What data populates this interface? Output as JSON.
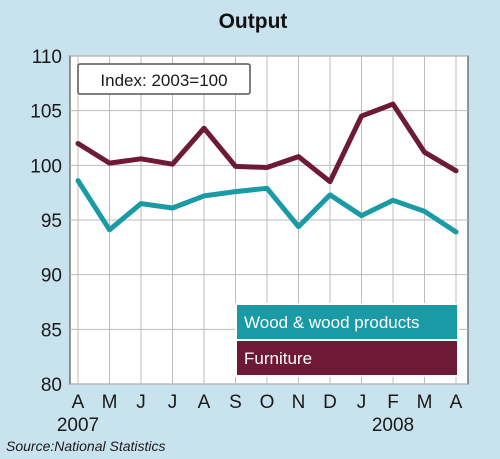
{
  "chart_data": {
    "type": "line",
    "title": "Output",
    "annotation": "Index: 2003=100",
    "source": "Source:National Statistics",
    "categories": [
      "A",
      "M",
      "J",
      "J",
      "A",
      "S",
      "O",
      "N",
      "D",
      "J",
      "F",
      "M",
      "A"
    ],
    "years": [
      {
        "label": "2007",
        "index": 0
      },
      {
        "label": "2008",
        "index": 10
      }
    ],
    "ylim": [
      80,
      110
    ],
    "yticks": [
      80,
      85,
      90,
      95,
      100,
      105,
      110
    ],
    "grid": true,
    "legend_position": "bottom-right",
    "series": [
      {
        "name": "Wood & wood products",
        "color": "#1a9aa5",
        "values": [
          98.6,
          94.1,
          96.5,
          96.1,
          97.2,
          97.6,
          97.9,
          94.4,
          97.3,
          95.4,
          96.8,
          95.8,
          93.9
        ]
      },
      {
        "name": "Furniture",
        "color": "#6e1a36",
        "values": [
          102.0,
          100.2,
          100.6,
          100.1,
          103.4,
          99.9,
          99.8,
          100.8,
          98.5,
          104.5,
          105.6,
          101.2,
          99.5
        ]
      }
    ]
  }
}
